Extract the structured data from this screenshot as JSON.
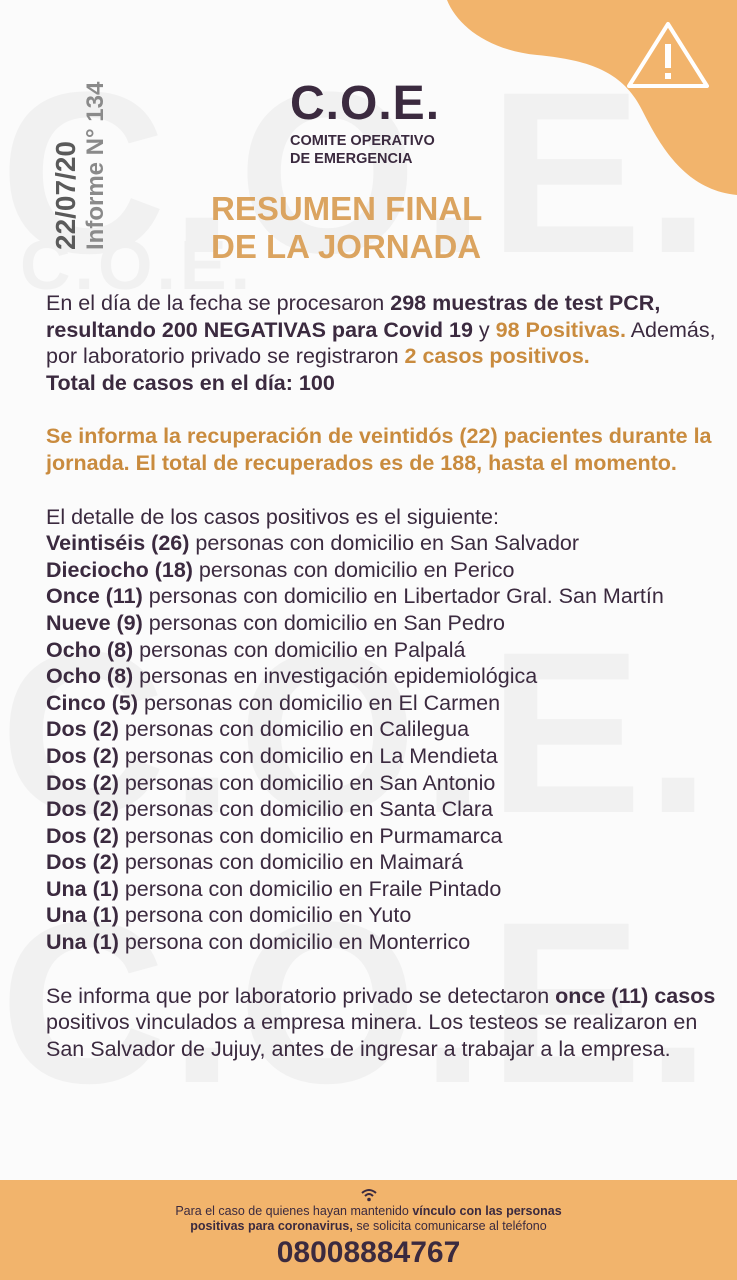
{
  "watermark": "C.O.E.",
  "colors": {
    "dark": "#3b2a3f",
    "orange_text": "#c98b3e",
    "title_orange": "#dba460",
    "orange_bg": "#f2b46c"
  },
  "side": {
    "date": "22/07/20",
    "report": "Informe N° 134"
  },
  "logo": {
    "acronym": "C.O.E.",
    "line1": "COMITE OPERATIVO",
    "line2": "DE EMERGENCIA"
  },
  "title": {
    "line1": "RESUMEN FINAL",
    "line2": "DE LA JORNADA"
  },
  "paragraphs": [
    [
      {
        "s": "n",
        "t": "En el día de la fecha se procesaron "
      },
      {
        "s": "b",
        "t": "298 muestras de test PCR, resultando 200 NEGATIVAS para Covid 19"
      },
      {
        "s": "n",
        "t": " y "
      },
      {
        "s": "o",
        "t": "98 Positivas."
      },
      {
        "s": "n",
        "t": " Además, por laboratorio privado se registraron "
      },
      {
        "s": "o",
        "t": "2 casos positivos."
      },
      {
        "s": "br",
        "t": ""
      },
      {
        "s": "b",
        "t": "Total de casos en el día: 100"
      }
    ],
    [
      {
        "s": "o",
        "t": "Se informa la recuperación de veintidós (22) pacientes durante la jornada. El total de recuperados es de 188, hasta el momento."
      }
    ]
  ],
  "detail_intro": "El detalle de los casos positivos es el siguiente:",
  "cases": [
    {
      "count": "Veintiséis (26)",
      "text": " personas con domicilio en San Salvador"
    },
    {
      "count": "Dieciocho (18)",
      "text": " personas con domicilio en Perico"
    },
    {
      "count": "Once (11)",
      "text": " personas con domicilio en Libertador Gral. San Martín"
    },
    {
      "count": "Nueve (9)",
      "text": " personas con domicilio en San Pedro"
    },
    {
      "count": "Ocho (8)",
      "text": " personas con domicilio en Palpalá"
    },
    {
      "count": "Ocho (8)",
      "text": " personas en investigación epidemiológica"
    },
    {
      "count": "Cinco (5)",
      "text": " personas con domicilio en El Carmen"
    },
    {
      "count": "Dos (2)",
      "text": " personas con domicilio en Calilegua"
    },
    {
      "count": "Dos (2)",
      "text": " personas con domicilio en La Mendieta"
    },
    {
      "count": "Dos (2)",
      "text": " personas con domicilio en San Antonio"
    },
    {
      "count": "Dos (2)",
      "text": " personas con domicilio en Santa Clara"
    },
    {
      "count": "Dos (2)",
      "text": " personas con domicilio en Purmamarca"
    },
    {
      "count": "Dos (2)",
      "text": " personas con domicilio en Maimará"
    },
    {
      "count": "Una (1)",
      "text": " persona con domicilio en Fraile Pintado"
    },
    {
      "count": "Una (1)",
      "text": " persona con domicilio en Yuto"
    },
    {
      "count": "Una (1)",
      "text": " persona con domicilio en Monterrico"
    }
  ],
  "closing": [
    {
      "s": "n",
      "t": "Se informa que por laboratorio privado se detectaron "
    },
    {
      "s": "b",
      "t": "once (11) casos"
    },
    {
      "s": "n",
      "t": " positivos vinculados a empresa minera. Los testeos se realizaron en San Salvador de Jujuy, antes de ingresar a trabajar a la empresa."
    }
  ],
  "footer": {
    "icon": "wifi-icon",
    "msg": [
      {
        "s": "n",
        "t": "Para el caso de quienes hayan mantenido "
      },
      {
        "s": "b",
        "t": "vínculo con las personas"
      },
      {
        "s": "br",
        "t": ""
      },
      {
        "s": "b",
        "t": "positivas para coronavirus,"
      },
      {
        "s": "n",
        "t": " se solicita comunicarse al teléfono"
      }
    ],
    "phone": "08008884767"
  }
}
